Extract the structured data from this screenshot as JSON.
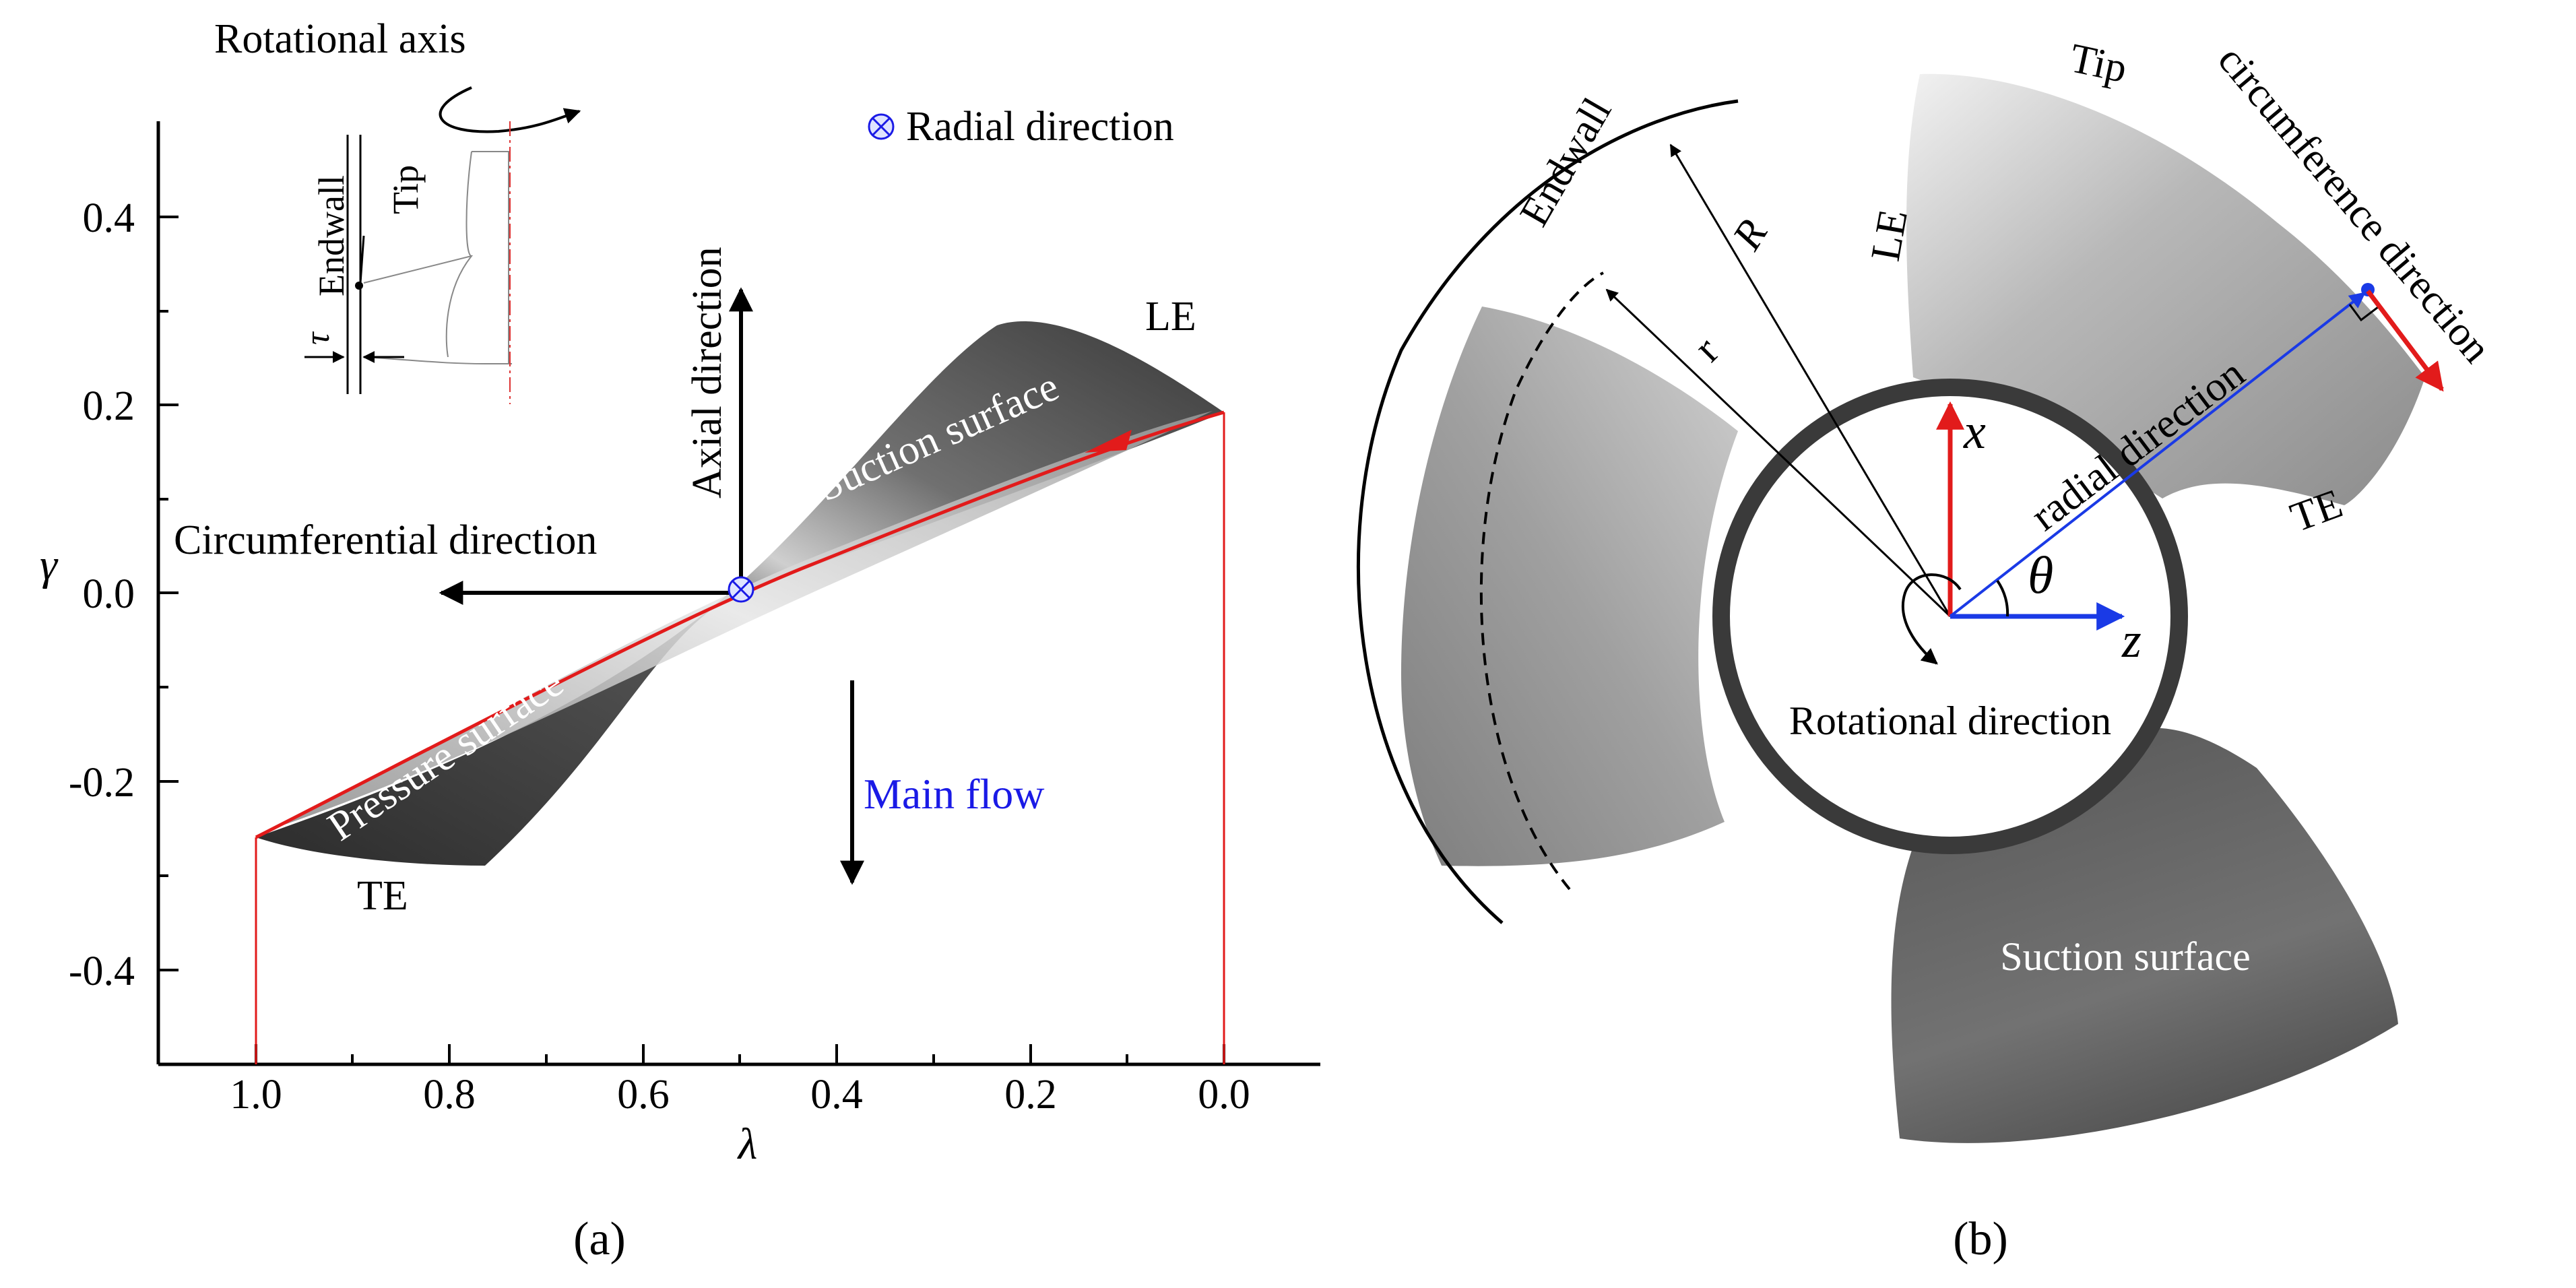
{
  "panel_a": {
    "caption": "(a)",
    "axes": {
      "xlabel": "λ",
      "ylabel": "γ",
      "x_ticks": [
        "1.0",
        "0.8",
        "0.6",
        "0.4",
        "0.2",
        "0.0"
      ],
      "y_ticks": [
        "0.4",
        "0.2",
        "0.0",
        "-0.2",
        "-0.4"
      ]
    },
    "labels": {
      "rotational_axis": "Rotational axis",
      "radial_direction": "Radial direction",
      "axial_direction": "Axial direction",
      "circumferential_direction": "Circumferential direction",
      "suction_surface": "Suction surface",
      "pressure_surface": "Pressure surface",
      "main_flow": "Main flow",
      "le": "LE",
      "te": "TE"
    },
    "inset": {
      "endwall": "Endwall",
      "tip": "Tip",
      "tau": "τ"
    },
    "colors": {
      "camber_line": "#e21b1b",
      "main_flow_text": "#1a1ae6",
      "blade": "#3c3c3c"
    }
  },
  "panel_b": {
    "caption": "(b)",
    "labels": {
      "tip": "Tip",
      "circumference_direction": "circumference direction",
      "endwall": "Endwall",
      "R": "R",
      "r": "r",
      "le": "LE",
      "x": "x",
      "radial_direction": "radial direction",
      "te": "TE",
      "theta": "θ",
      "z": "z",
      "rotational_direction": "Rotational direction",
      "suction_surface": "Suction surface"
    },
    "colors": {
      "x_axis": "#e21b1b",
      "z_axis": "#1a3ae6",
      "radial": "#1a3ae6",
      "circumference": "#e21b1b"
    }
  }
}
